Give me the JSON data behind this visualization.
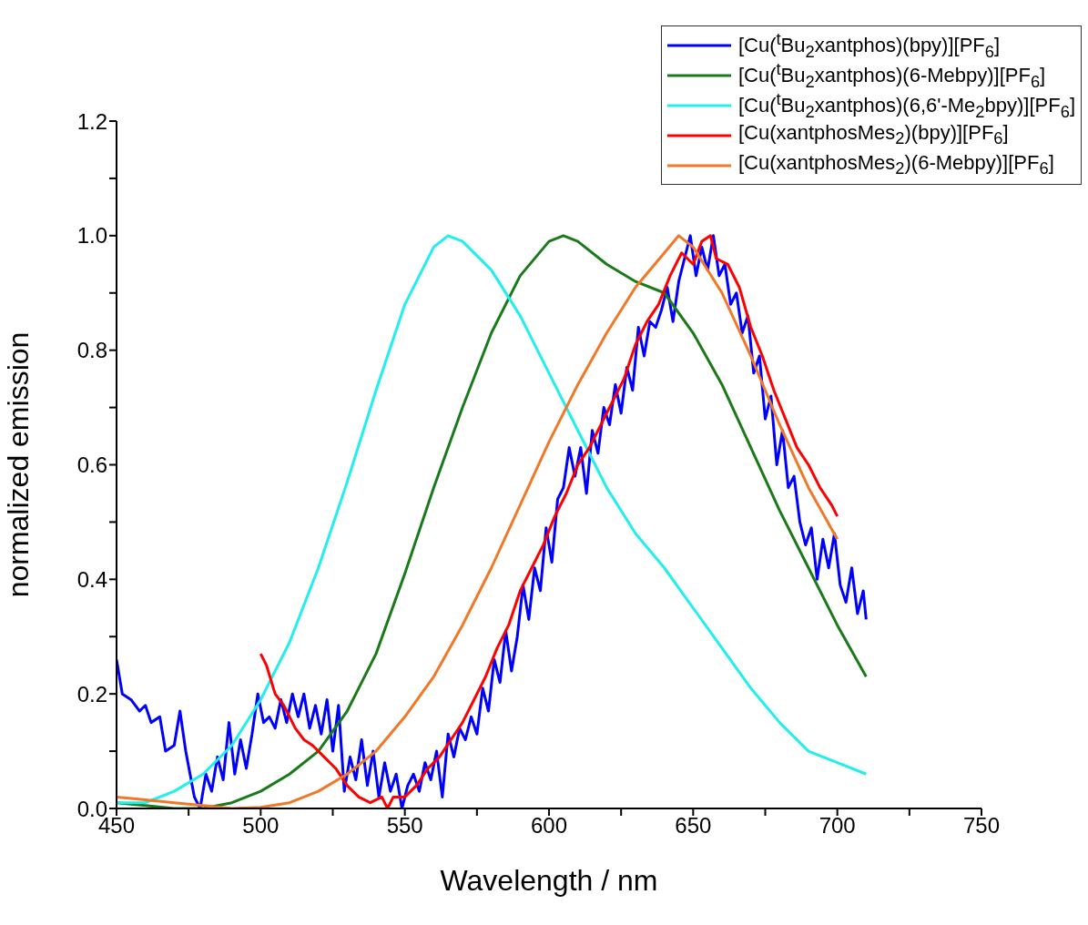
{
  "chart_data": {
    "type": "line",
    "xlabel": "Wavelength / nm",
    "ylabel": "normalized emission",
    "xlim": [
      450,
      750
    ],
    "ylim": [
      0,
      1.2
    ],
    "xticks": [
      450,
      {
        "value": 475,
        "label": null
      },
      500,
      {
        "value": 525,
        "label": null
      },
      550,
      {
        "value": 575,
        "label": null
      },
      600,
      {
        "value": 625,
        "label": null
      },
      650,
      {
        "value": 675,
        "label": null
      },
      700,
      {
        "value": 725,
        "label": null
      },
      750
    ],
    "yticks": [
      {
        "value": 0,
        "label": "0.0"
      },
      {
        "value": 0.1,
        "label": null
      },
      {
        "value": 0.2,
        "label": "0.2"
      },
      {
        "value": 0.3,
        "label": null
      },
      {
        "value": 0.4,
        "label": "0.4"
      },
      {
        "value": 0.5,
        "label": null
      },
      {
        "value": 0.6,
        "label": "0.6"
      },
      {
        "value": 0.7,
        "label": null
      },
      {
        "value": 0.8,
        "label": "0.8"
      },
      {
        "value": 0.9,
        "label": null
      },
      {
        "value": 1.0,
        "label": "1.0"
      },
      {
        "value": 1.1,
        "label": null
      },
      {
        "value": 1.2,
        "label": "1.2"
      }
    ],
    "grid": false,
    "legend": "top right",
    "marker": "none",
    "line_style": "solid",
    "series": [
      {
        "name": "[Cu($^{t}$Bu$_{2}$xantphos)(bpy)][PF$_{6}$]",
        "color": "#0000ff",
        "x": [
          450,
          452,
          455,
          458,
          460,
          462,
          465,
          467,
          470,
          472,
          474,
          477,
          479,
          481,
          483,
          485,
          487,
          489,
          491,
          493,
          495,
          497,
          499,
          501,
          503,
          505,
          507,
          509,
          511,
          513,
          515,
          517,
          519,
          521,
          523,
          525,
          527,
          529,
          531,
          533,
          535,
          537,
          539,
          541,
          543,
          545,
          547,
          549,
          551,
          553,
          555,
          557,
          559,
          561,
          563,
          565,
          567,
          569,
          571,
          573,
          575,
          577,
          579,
          581,
          583,
          585,
          587,
          589,
          591,
          593,
          595,
          597,
          599,
          601,
          603,
          605,
          607,
          609,
          611,
          613,
          615,
          617,
          619,
          621,
          623,
          625,
          627,
          629,
          631,
          633,
          635,
          637,
          639,
          641,
          643,
          645,
          647,
          649,
          651,
          653,
          655,
          657,
          659,
          661,
          663,
          665,
          667,
          669,
          671,
          673,
          675,
          677,
          679,
          681,
          683,
          685,
          687,
          689,
          691,
          693,
          695,
          697,
          699,
          701,
          703,
          705,
          707,
          709,
          710
        ],
        "values": [
          0.26,
          0.2,
          0.19,
          0.17,
          0.18,
          0.15,
          0.16,
          0.1,
          0.11,
          0.17,
          0.1,
          0.02,
          0.0,
          0.06,
          0.03,
          0.09,
          0.05,
          0.15,
          0.06,
          0.12,
          0.07,
          0.13,
          0.2,
          0.15,
          0.16,
          0.14,
          0.19,
          0.15,
          0.2,
          0.16,
          0.2,
          0.14,
          0.18,
          0.13,
          0.19,
          0.1,
          0.18,
          0.03,
          0.09,
          0.05,
          0.12,
          0.04,
          0.1,
          0.02,
          0.08,
          0.03,
          0.06,
          0.0,
          0.04,
          0.06,
          0.03,
          0.08,
          0.05,
          0.1,
          0.02,
          0.13,
          0.09,
          0.14,
          0.12,
          0.16,
          0.13,
          0.21,
          0.17,
          0.26,
          0.22,
          0.31,
          0.24,
          0.3,
          0.39,
          0.33,
          0.42,
          0.38,
          0.49,
          0.43,
          0.54,
          0.56,
          0.63,
          0.58,
          0.63,
          0.55,
          0.66,
          0.62,
          0.7,
          0.67,
          0.74,
          0.69,
          0.77,
          0.73,
          0.84,
          0.79,
          0.85,
          0.84,
          0.87,
          0.91,
          0.85,
          0.92,
          0.96,
          1.0,
          0.93,
          0.98,
          0.94,
          1.0,
          0.93,
          0.95,
          0.88,
          0.9,
          0.83,
          0.86,
          0.76,
          0.79,
          0.68,
          0.72,
          0.6,
          0.66,
          0.56,
          0.58,
          0.5,
          0.46,
          0.49,
          0.4,
          0.47,
          0.42,
          0.48,
          0.39,
          0.36,
          0.42,
          0.34,
          0.38,
          0.33
        ]
      },
      {
        "name": "[Cu($^{t}$Bu$_{2}$xantphos)(6-Mebpy)][PF$_{6}$]",
        "color": "#1a7a1a",
        "x": [
          450,
          460,
          470,
          480,
          490,
          500,
          510,
          520,
          530,
          540,
          550,
          560,
          570,
          580,
          590,
          600,
          605,
          610,
          620,
          630,
          640,
          650,
          660,
          670,
          680,
          690,
          700,
          710
        ],
        "values": [
          0.01,
          0.005,
          0.0,
          0.0,
          0.01,
          0.03,
          0.06,
          0.1,
          0.17,
          0.27,
          0.41,
          0.56,
          0.7,
          0.83,
          0.93,
          0.99,
          1.0,
          0.99,
          0.95,
          0.92,
          0.9,
          0.83,
          0.74,
          0.63,
          0.52,
          0.42,
          0.32,
          0.23
        ]
      },
      {
        "name": "[Cu($^{t}$Bu$_{2}$xantphos)(6,6'-Me$_{2}$bpy)][PF$_{6}$]",
        "color": "#22eeee",
        "x": [
          450,
          460,
          470,
          480,
          490,
          500,
          510,
          520,
          530,
          540,
          550,
          560,
          565,
          570,
          580,
          590,
          600,
          610,
          620,
          630,
          640,
          650,
          660,
          670,
          680,
          690,
          700,
          710
        ],
        "values": [
          0.01,
          0.01,
          0.03,
          0.06,
          0.11,
          0.19,
          0.29,
          0.42,
          0.57,
          0.73,
          0.88,
          0.98,
          1.0,
          0.99,
          0.94,
          0.86,
          0.76,
          0.66,
          0.56,
          0.48,
          0.42,
          0.35,
          0.28,
          0.21,
          0.15,
          0.1,
          0.08,
          0.06
        ]
      },
      {
        "name": "[Cu(xantphosMes$_{2}$)(bpy)][PF$_{6}$]",
        "color": "#ff0000",
        "x": [
          500,
          502,
          505,
          508,
          512,
          515,
          518,
          522,
          526,
          530,
          534,
          538,
          542,
          544,
          546,
          550,
          554,
          558,
          562,
          566,
          570,
          574,
          578,
          582,
          586,
          590,
          594,
          598,
          602,
          606,
          610,
          614,
          618,
          622,
          626,
          630,
          634,
          638,
          642,
          646,
          650,
          653,
          656,
          658,
          662,
          666,
          670,
          674,
          678,
          682,
          686,
          690,
          694,
          698,
          700
        ],
        "values": [
          0.27,
          0.25,
          0.2,
          0.18,
          0.14,
          0.12,
          0.11,
          0.09,
          0.07,
          0.04,
          0.02,
          0.01,
          0.02,
          0.0,
          0.02,
          0.02,
          0.04,
          0.07,
          0.09,
          0.12,
          0.15,
          0.19,
          0.23,
          0.28,
          0.32,
          0.38,
          0.42,
          0.46,
          0.51,
          0.55,
          0.6,
          0.63,
          0.67,
          0.71,
          0.75,
          0.81,
          0.85,
          0.88,
          0.93,
          0.97,
          0.95,
          0.99,
          1.0,
          0.96,
          0.95,
          0.91,
          0.84,
          0.79,
          0.73,
          0.68,
          0.63,
          0.6,
          0.56,
          0.53,
          0.51
        ]
      },
      {
        "name": "[Cu(xantphosMes$_{2}$)(6-Mebpy)][PF$_{6}$]",
        "color": "#f07828",
        "x": [
          450,
          460,
          470,
          480,
          490,
          500,
          510,
          520,
          530,
          540,
          550,
          560,
          570,
          580,
          590,
          600,
          610,
          620,
          630,
          640,
          645,
          650,
          660,
          670,
          680,
          690,
          700
        ],
        "values": [
          0.02,
          0.015,
          0.01,
          0.005,
          0.0,
          0.002,
          0.01,
          0.03,
          0.06,
          0.1,
          0.16,
          0.23,
          0.32,
          0.42,
          0.53,
          0.64,
          0.74,
          0.83,
          0.91,
          0.97,
          1.0,
          0.98,
          0.9,
          0.79,
          0.67,
          0.56,
          0.47
        ]
      }
    ]
  }
}
